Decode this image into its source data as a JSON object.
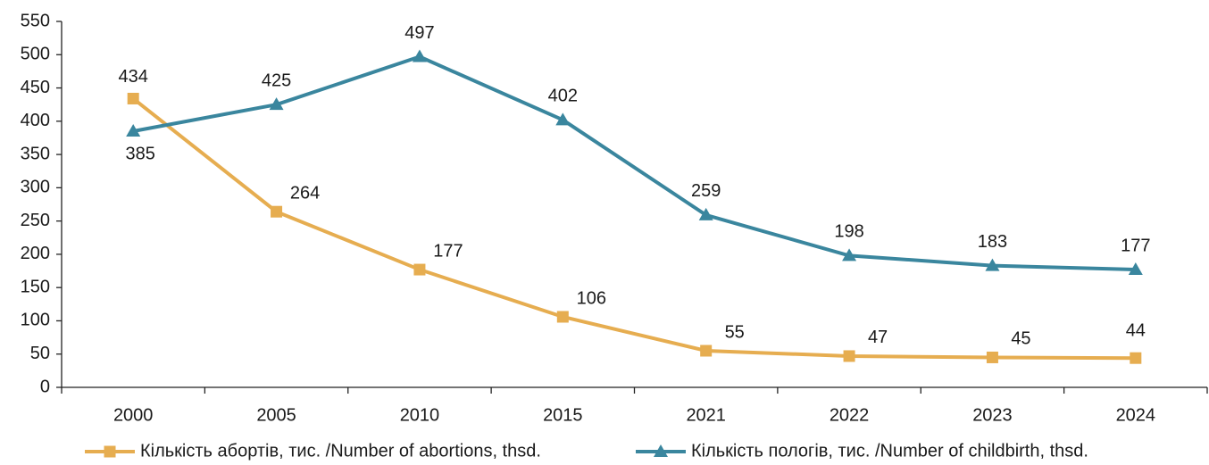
{
  "chart_data": {
    "type": "line",
    "categories": [
      "2000",
      "2005",
      "2010",
      "2015",
      "2021",
      "2022",
      "2023",
      "2024"
    ],
    "series": [
      {
        "name": "Кількість абортів, тис. /Number of abortions, thsd.",
        "color": "#e6ad50",
        "marker": "square",
        "values": [
          434,
          264,
          177,
          106,
          55,
          47,
          45,
          44
        ]
      },
      {
        "name": "Кількість пологів, тис. /Number of childbirth, thsd.",
        "color": "#3a869e",
        "marker": "triangle",
        "values": [
          385,
          425,
          497,
          402,
          259,
          198,
          183,
          177
        ]
      }
    ],
    "ylim": [
      0,
      550
    ],
    "yticks": [
      0,
      50,
      100,
      150,
      200,
      250,
      300,
      350,
      400,
      450,
      500,
      550
    ],
    "grid": false,
    "legend": "bottom"
  }
}
